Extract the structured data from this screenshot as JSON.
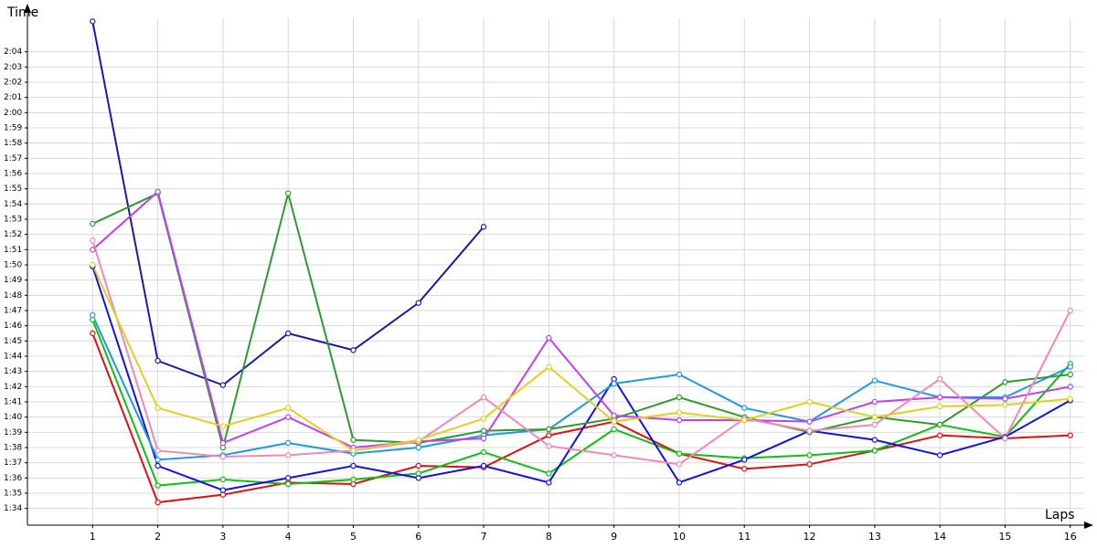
{
  "chart_data": {
    "type": "line",
    "y_label": "Time",
    "x_label": "Laps",
    "x": [
      1,
      2,
      3,
      4,
      5,
      6,
      7,
      8,
      9,
      10,
      11,
      12,
      13,
      14,
      15,
      16
    ],
    "xlim": [
      0,
      16.2
    ],
    "xticks": [
      1,
      2,
      3,
      4,
      5,
      6,
      7,
      8,
      9,
      10,
      11,
      12,
      13,
      14,
      15,
      16
    ],
    "ylim": [
      92.9,
      126.5
    ],
    "yticks": [
      {
        "value": 94,
        "label": "1:34"
      },
      {
        "value": 95,
        "label": "1:35"
      },
      {
        "value": 96,
        "label": "1:36"
      },
      {
        "value": 97,
        "label": "1:37"
      },
      {
        "value": 98,
        "label": "1:38"
      },
      {
        "value": 99,
        "label": "1:39"
      },
      {
        "value": 100,
        "label": "1:40"
      },
      {
        "value": 101,
        "label": "1:41"
      },
      {
        "value": 102,
        "label": "1:42"
      },
      {
        "value": 103,
        "label": "1:43"
      },
      {
        "value": 104,
        "label": "1:44"
      },
      {
        "value": 105,
        "label": "1:45"
      },
      {
        "value": 106,
        "label": "1:46"
      },
      {
        "value": 107,
        "label": "1:47"
      },
      {
        "value": 108,
        "label": "1:48"
      },
      {
        "value": 109,
        "label": "1:49"
      },
      {
        "value": 110,
        "label": "1:50"
      },
      {
        "value": 111,
        "label": "1:51"
      },
      {
        "value": 112,
        "label": "1:52"
      },
      {
        "value": 113,
        "label": "1:53"
      },
      {
        "value": 114,
        "label": "1:54"
      },
      {
        "value": 115,
        "label": "1:55"
      },
      {
        "value": 116,
        "label": "1:56"
      },
      {
        "value": 117,
        "label": "1:57"
      },
      {
        "value": 118,
        "label": "1:58"
      },
      {
        "value": 119,
        "label": "1:59"
      },
      {
        "value": 120,
        "label": "2:00"
      },
      {
        "value": 121,
        "label": "2:01"
      },
      {
        "value": 122,
        "label": "2:02"
      },
      {
        "value": 123,
        "label": "2:03"
      },
      {
        "value": 124,
        "label": "2:04"
      }
    ],
    "grid": true,
    "series": [
      {
        "color": "#1a1aa8",
        "values": [
          126,
          103.7,
          102.1,
          105.5,
          104.4,
          107.5,
          112.5,
          null,
          null,
          null,
          null,
          null,
          null,
          null,
          null,
          null
        ]
      },
      {
        "color": "#e01010",
        "values": [
          105.5,
          94.4,
          94.9,
          95.7,
          95.6,
          96.8,
          96.7,
          98.8,
          99.7,
          97.6,
          96.6,
          96.9,
          97.8,
          98.8,
          98.6,
          98.8
        ]
      },
      {
        "color": "#10c010",
        "values": [
          106.4,
          95.5,
          95.9,
          95.6,
          95.9,
          96.3,
          97.7,
          96.3,
          99.2,
          97.6,
          97.3,
          97.5,
          97.8,
          99.5,
          98.7,
          103.5
        ]
      },
      {
        "color": "#1010e8",
        "values": [
          109.9,
          96.8,
          95.2,
          96.0,
          96.8,
          96.0,
          96.8,
          95.7,
          102.5,
          95.7,
          97.2,
          99.1,
          98.5,
          97.5,
          98.7,
          101.1
        ]
      },
      {
        "color": "#1e9be0",
        "values": [
          106.7,
          97.2,
          97.5,
          98.3,
          97.6,
          98.0,
          98.8,
          99.2,
          102.2,
          102.8,
          100.6,
          99.7,
          102.4,
          101.3,
          101.3,
          103.3
        ]
      },
      {
        "color": "#2e9a2e",
        "values": [
          112.7,
          114.7,
          98.0,
          114.7,
          98.5,
          98.3,
          99.1,
          99.2,
          99.9,
          101.3,
          100.0,
          99.0,
          100.0,
          99.5,
          102.3,
          102.8
        ]
      },
      {
        "color": "#c040f0",
        "values": [
          111.0,
          114.8,
          98.3,
          100.0,
          98.0,
          98.4,
          98.6,
          105.2,
          100.1,
          99.8,
          99.8,
          99.7,
          101.0,
          101.3,
          101.2,
          102.0
        ]
      },
      {
        "color": "#f088b8",
        "values": [
          111.6,
          97.8,
          97.4,
          97.5,
          97.8,
          98.4,
          101.3,
          98.1,
          97.5,
          96.9,
          99.9,
          99.1,
          99.5,
          102.5,
          98.6,
          107.0
        ]
      },
      {
        "color": "#e0d020",
        "values": [
          110.0,
          100.6,
          99.4,
          100.6,
          97.8,
          98.5,
          99.9,
          103.3,
          99.7,
          100.3,
          99.8,
          101.0,
          100.0,
          100.7,
          100.8,
          101.2
        ]
      }
    ]
  }
}
